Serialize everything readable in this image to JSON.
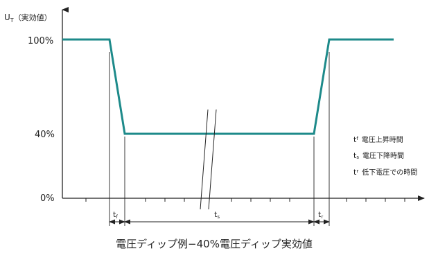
{
  "axis": {
    "y_label": "U",
    "y_label_sub": "T",
    "y_label_suffix": "（実効値）",
    "y_ticks": [
      "100%",
      "40%",
      "0%"
    ]
  },
  "legend": [
    {
      "sym": "t",
      "sub": "f",
      "text": "電圧上昇時間"
    },
    {
      "sym": "t",
      "sub": "s",
      "text": "電圧下降時間"
    },
    {
      "sym": "t",
      "sub": "r",
      "text": "低下電圧での時間"
    }
  ],
  "intervals": {
    "tf": {
      "sym": "t",
      "sub": "f"
    },
    "ts": {
      "sym": "t",
      "sub": "s"
    },
    "tr": {
      "sym": "t",
      "sub": "r"
    }
  },
  "caption": "電圧ディップ例−40%電圧ディップ実効値",
  "colors": {
    "waveform": "#1d8a8a",
    "axis": "#222222"
  }
}
